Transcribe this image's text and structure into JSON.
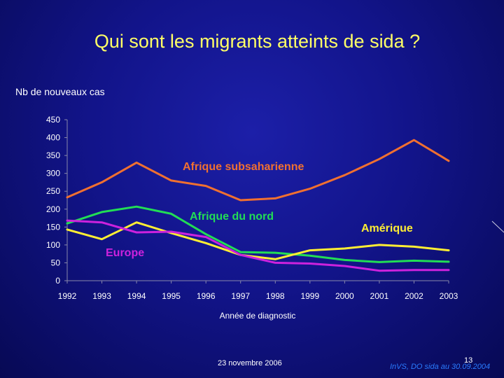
{
  "slide": {
    "title": "Qui sont les migrants atteints de sida ?",
    "y_axis_caption": "Nb de nouveaux cas",
    "footer_date": "23 novembre 2006",
    "footer_page": "13",
    "footer_source": "InVS, DO sida au 30.09.2004"
  },
  "chart_data": {
    "type": "line",
    "title": "",
    "xlabel": "Année de diagnostic",
    "ylabel": "Nb de nouveaux cas",
    "ylim": [
      0,
      450
    ],
    "yticks": [
      0,
      50,
      100,
      150,
      200,
      250,
      300,
      350,
      400,
      450
    ],
    "grid": false,
    "categories": [
      "1992",
      "1993",
      "1994",
      "1995",
      "1996",
      "1997",
      "1998",
      "1999",
      "2000",
      "2001",
      "2002",
      "2003"
    ],
    "series": [
      {
        "name": "Afrique subsaharienne",
        "color": "#f07030",
        "values": [
          233,
          275,
          330,
          280,
          265,
          225,
          230,
          257,
          295,
          340,
          393,
          335
        ]
      },
      {
        "name": "Afrique du nord",
        "color": "#22dd55",
        "values": [
          160,
          192,
          207,
          187,
          130,
          80,
          78,
          70,
          58,
          52,
          56,
          53
        ]
      },
      {
        "name": "Amérique",
        "color": "#ffee33",
        "values": [
          143,
          116,
          163,
          133,
          105,
          72,
          60,
          85,
          90,
          100,
          95,
          85
        ]
      },
      {
        "name": "Europe",
        "color": "#cc22dd",
        "values": [
          168,
          163,
          135,
          137,
          122,
          72,
          50,
          48,
          41,
          28,
          30,
          30
        ]
      }
    ]
  }
}
